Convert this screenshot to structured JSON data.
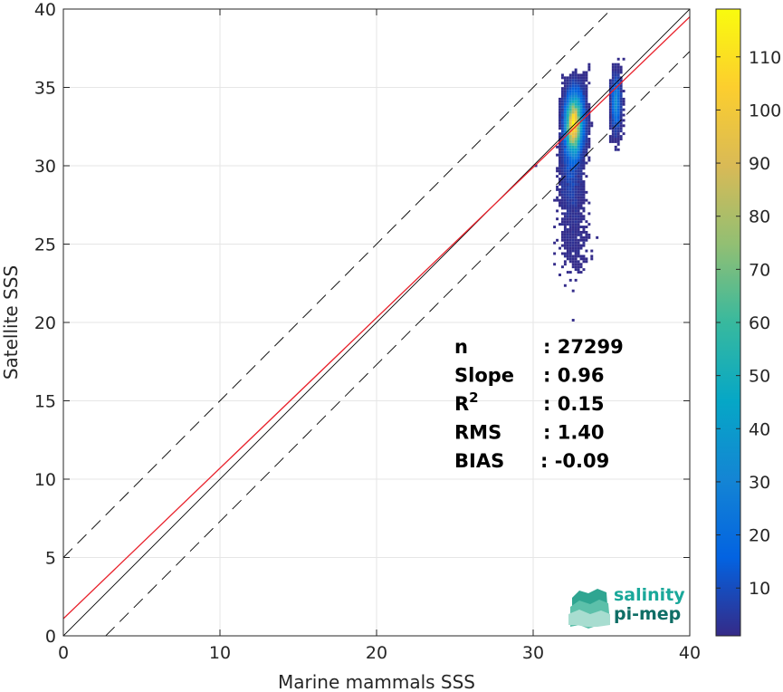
{
  "chart_data": {
    "type": "heatmap",
    "xlabel": "Marine mammals SSS",
    "ylabel": "Satellite SSS",
    "xlim": [
      0,
      40
    ],
    "ylim": [
      0,
      40
    ],
    "xticks": [
      "0",
      "10",
      "20",
      "30",
      "40"
    ],
    "yticks": [
      "0",
      "5",
      "10",
      "15",
      "20",
      "25",
      "30",
      "35",
      "40"
    ],
    "grid": true,
    "colorbar": {
      "min": 1,
      "max": 119,
      "ticks": [
        "10",
        "20",
        "30",
        "40",
        "50",
        "60",
        "70",
        "80",
        "90",
        "100",
        "110"
      ],
      "colormap": "parula"
    },
    "density": {
      "x_center": 32.6,
      "y_center": 32.6,
      "x_range": [
        30.0,
        36.0
      ],
      "y_range": [
        20.0,
        38.5
      ],
      "peak_count": 119
    },
    "lines": [
      {
        "name": "1:1",
        "type": "solid",
        "color": "#000000",
        "intercept": 0,
        "slope": 1
      },
      {
        "name": "regression",
        "type": "solid",
        "color": "#e8202a",
        "intercept": 1.1,
        "slope": 0.96
      },
      {
        "name": "upper",
        "type": "dashed",
        "color": "#000000",
        "intercept": 5.0,
        "slope": 1.0
      },
      {
        "name": "lower",
        "type": "dashed",
        "color": "#000000",
        "intercept": -2.7,
        "slope": 1.0
      }
    ],
    "stats": [
      {
        "label": "n",
        "value": ": 27299"
      },
      {
        "label": "Slope",
        "value": ": 0.96"
      },
      {
        "label": "R",
        "sup": "2",
        "value": ": 0.15"
      },
      {
        "label": "RMS",
        "value": ": 1.40"
      },
      {
        "label": "BIAS",
        "value": ": -0.09"
      }
    ]
  },
  "logo": {
    "line1": "salinity",
    "line2": "pi-mep",
    "color1": "#1aa89a",
    "color2": "#0f6e66"
  }
}
